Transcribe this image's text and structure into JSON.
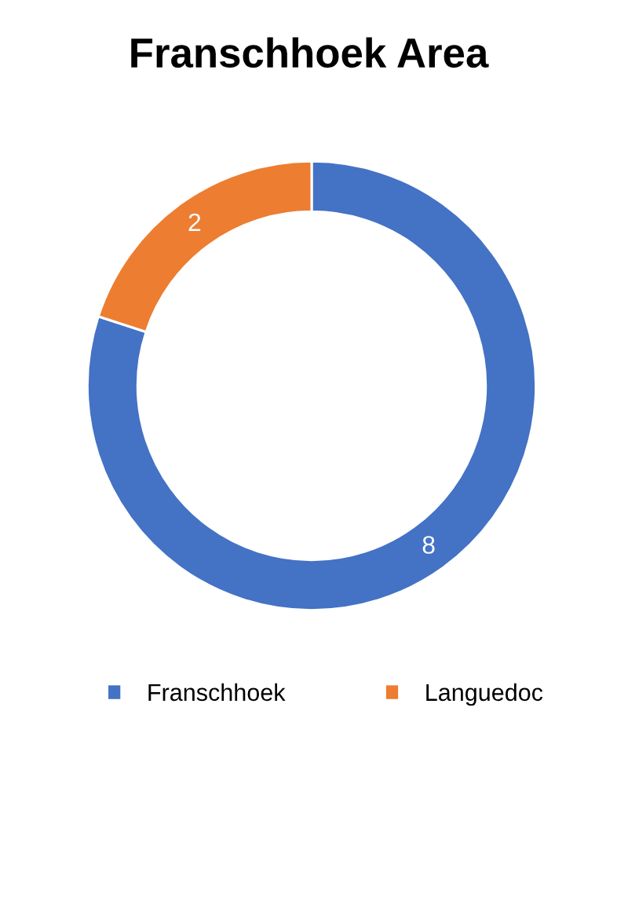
{
  "chart_data": {
    "type": "donut",
    "title": "Franschhoek Area",
    "categories": [
      "Franschhoek",
      "Languedoc"
    ],
    "values": [
      8,
      2
    ],
    "colors": [
      "#4472c4",
      "#ed7d31"
    ],
    "data_labels": true,
    "legend": "bottom"
  }
}
